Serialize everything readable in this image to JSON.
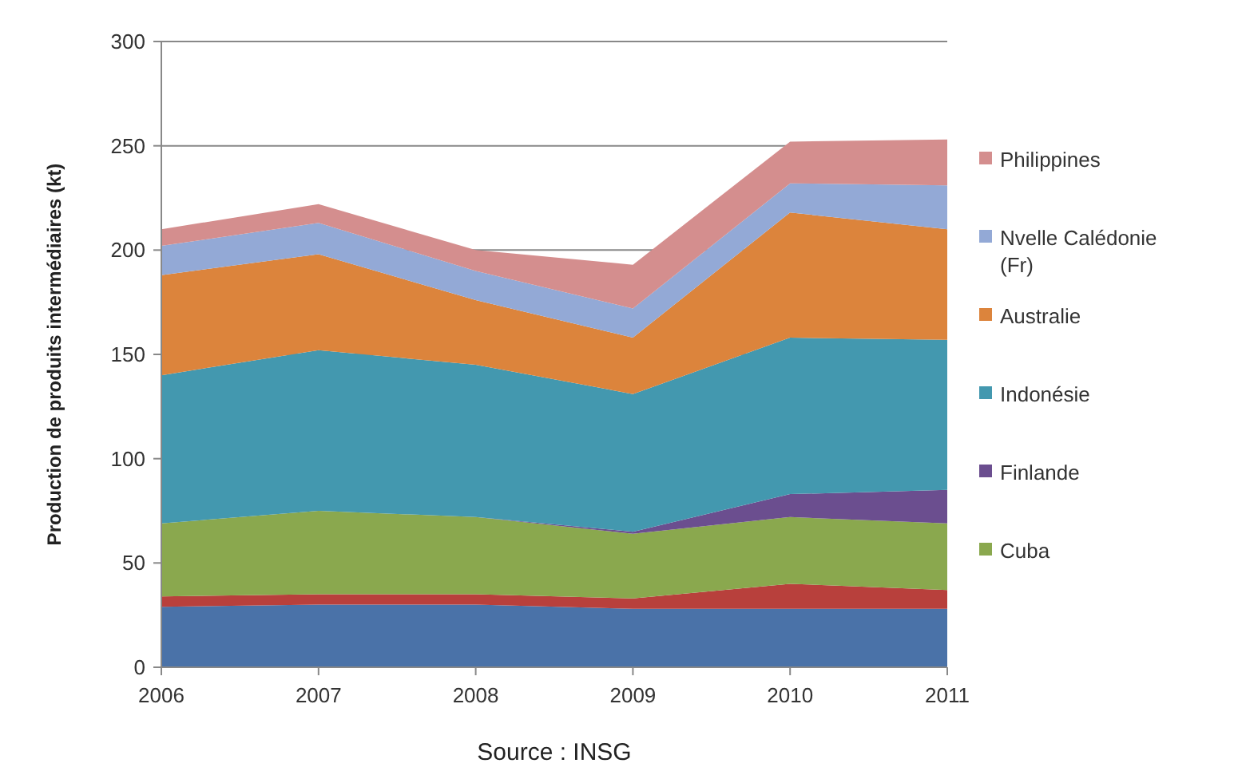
{
  "chart_data": {
    "type": "area",
    "stacked": true,
    "ylabel": "Production de produits intermédiaires (kt)",
    "annotations": [
      "Source : INSG"
    ],
    "x": [
      2006,
      2007,
      2008,
      2009,
      2010,
      2011
    ],
    "xlim": [
      2006,
      2011
    ],
    "xticks": [
      2006,
      2007,
      2008,
      2009,
      2010,
      2011
    ],
    "ylim": [
      0,
      300
    ],
    "yticks": [
      0,
      50,
      100,
      150,
      200,
      250,
      300
    ],
    "grid": "y",
    "legend": "right",
    "series": [
      {
        "color": "#4a72a8",
        "values": [
          29,
          30,
          30,
          28,
          28,
          28
        ]
      },
      {
        "color": "#b8403c",
        "values": [
          5,
          5,
          5,
          5,
          12,
          9
        ]
      },
      {
        "name": "Cuba",
        "color": "#8aa84e",
        "values": [
          35,
          40,
          37,
          31,
          32,
          32
        ]
      },
      {
        "name": "Finlande",
        "color": "#6b4e8f",
        "values": [
          0,
          0,
          0,
          1,
          11,
          16
        ]
      },
      {
        "name": "Indonésie",
        "color": "#4398af",
        "values": [
          71,
          77,
          73,
          66,
          75,
          72
        ]
      },
      {
        "name": "Australie",
        "color": "#dc843c",
        "values": [
          48,
          46,
          31,
          27,
          60,
          53
        ]
      },
      {
        "name": "Nvelle Calédonie (Fr)",
        "color": "#93a9d6",
        "values": [
          14,
          15,
          14,
          14,
          14,
          21
        ]
      },
      {
        "name": "Philippines",
        "color": "#d48e8e",
        "values": [
          8,
          9,
          10,
          21,
          20,
          22
        ]
      }
    ]
  }
}
